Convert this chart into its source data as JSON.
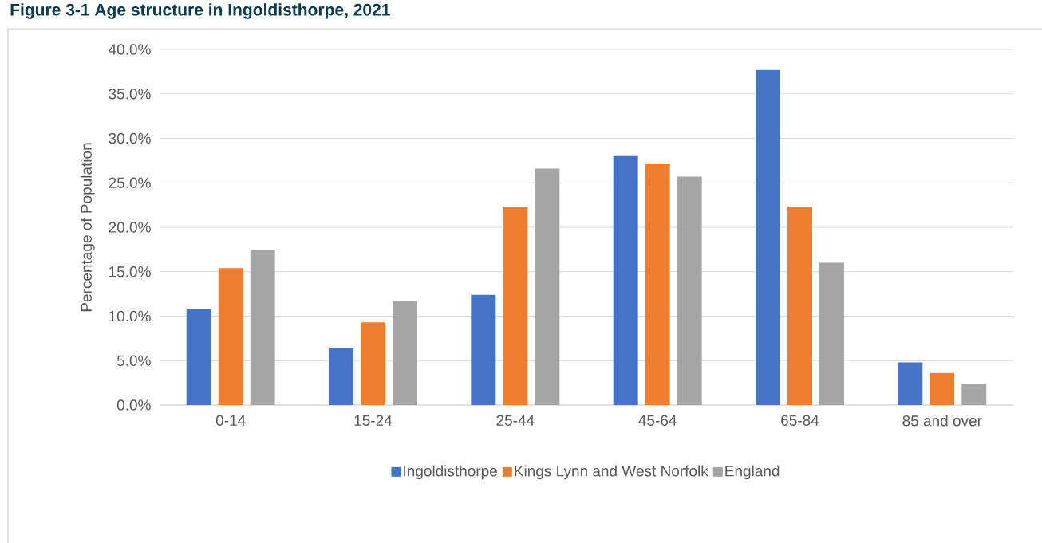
{
  "chart_data": {
    "type": "bar",
    "title": "Figure 3-1 Age structure in Ingoldisthorpe, 2021",
    "ylabel": "Percentage of Population",
    "categories": [
      "0-14",
      "15-24",
      "25-44",
      "45-64",
      "65-84",
      "85 and over"
    ],
    "series": [
      {
        "name": "Ingoldisthorpe",
        "color": "#4472c4",
        "values": [
          10.8,
          6.4,
          12.4,
          28.0,
          37.7,
          4.8
        ]
      },
      {
        "name": "Kings Lynn and West Norfolk",
        "color": "#ed7d31",
        "values": [
          15.4,
          9.3,
          22.3,
          27.1,
          22.3,
          3.6
        ]
      },
      {
        "name": "England",
        "color": "#a5a5a5",
        "values": [
          17.4,
          11.7,
          26.6,
          25.7,
          16.0,
          2.4
        ]
      }
    ],
    "ylim": [
      0,
      40
    ],
    "yticks": [
      {
        "value": 0,
        "label": "0.0%"
      },
      {
        "value": 5,
        "label": "5.0%"
      },
      {
        "value": 10,
        "label": "10.0%"
      },
      {
        "value": 15,
        "label": "15.0%"
      },
      {
        "value": 20,
        "label": "20.0%"
      },
      {
        "value": 25,
        "label": "25.0%"
      },
      {
        "value": 30,
        "label": "30.0%"
      },
      {
        "value": 35,
        "label": "35.0%"
      },
      {
        "value": 40,
        "label": "40.0%"
      }
    ],
    "grid": "y",
    "legend": "bottom"
  }
}
